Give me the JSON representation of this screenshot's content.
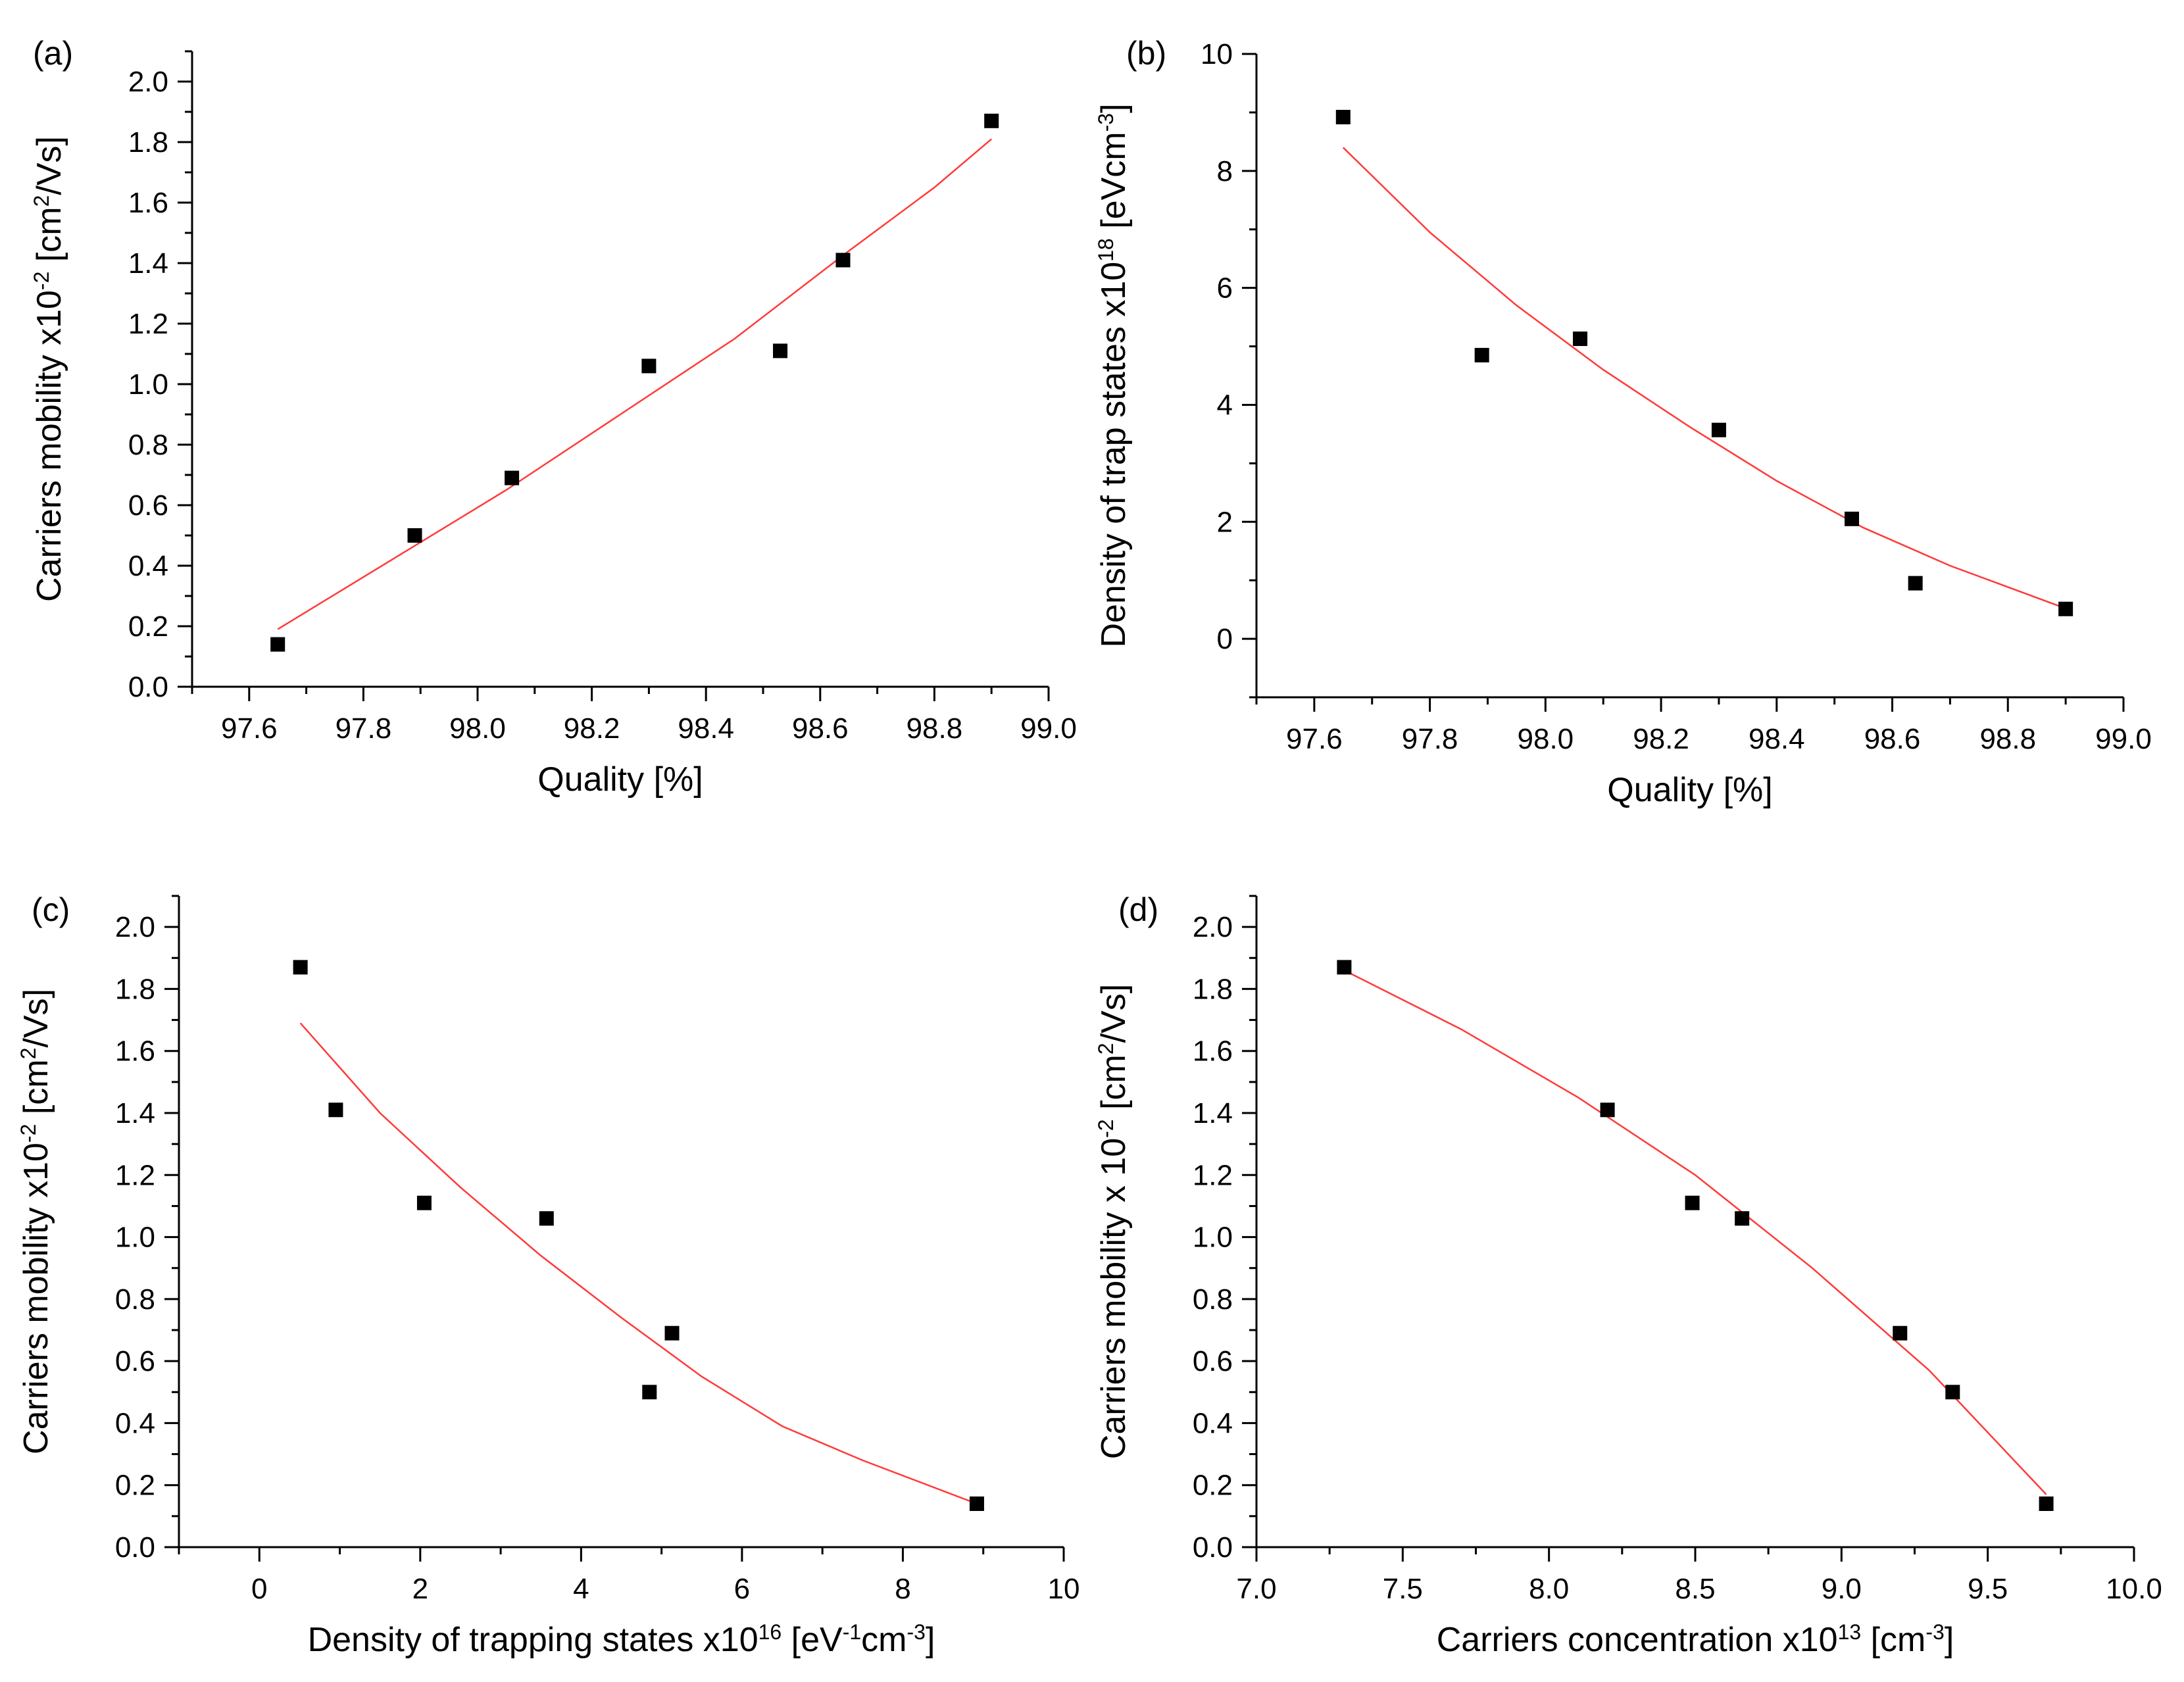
{
  "colors": {
    "marker": "#000000",
    "fit": "#ff3a3a",
    "axis": "#000000"
  },
  "chart_data": [
    {
      "type": "scatter",
      "panel_label": "(a)",
      "xlabel": "Quality [%]",
      "ylabel": "Carriers mobility x10-2 [cm2/Vs]",
      "ylabel_parts": [
        {
          "text": "Carriers mobility x10",
          "sup": false
        },
        {
          "text": "-2",
          "sup": true
        },
        {
          "text": " [cm",
          "sup": false
        },
        {
          "text": "2",
          "sup": true
        },
        {
          "text": "/Vs]",
          "sup": false
        }
      ],
      "xlim": [
        97.5,
        99.0
      ],
      "ylim": [
        0.0,
        2.1
      ],
      "xticks": [
        "97.6",
        "97.8",
        "98.0",
        "98.2",
        "98.4",
        "98.6",
        "98.8",
        "99.0"
      ],
      "yticks": [
        "0.0",
        "0.2",
        "0.4",
        "0.6",
        "0.8",
        "1.0",
        "1.2",
        "1.4",
        "1.6",
        "1.8",
        "2.0"
      ],
      "x": [
        97.65,
        97.89,
        98.06,
        98.3,
        98.53,
        98.64,
        98.9
      ],
      "y": [
        0.14,
        0.5,
        0.69,
        1.06,
        1.11,
        1.41,
        1.87
      ],
      "fit": {
        "x": [
          97.65,
          97.85,
          98.05,
          98.25,
          98.45,
          98.65,
          98.8,
          98.9
        ],
        "y": [
          0.19,
          0.42,
          0.65,
          0.9,
          1.15,
          1.44,
          1.65,
          1.81
        ]
      }
    },
    {
      "type": "scatter",
      "panel_label": "(b)",
      "xlabel": "Quality [%]",
      "ylabel": "Density of trap states x1018 [eVcm-3]",
      "ylabel_parts": [
        {
          "text": "Density of trap states x10",
          "sup": false
        },
        {
          "text": "18",
          "sup": true
        },
        {
          "text": " [eVcm",
          "sup": false
        },
        {
          "text": "-3",
          "sup": true
        },
        {
          "text": "]",
          "sup": false
        }
      ],
      "xlim": [
        97.5,
        99.0
      ],
      "ylim": [
        -1.0,
        10.0
      ],
      "xticks": [
        "97.6",
        "97.8",
        "98.0",
        "98.2",
        "98.4",
        "98.6",
        "98.8",
        "99.0"
      ],
      "yticks": [
        "0",
        "2",
        "4",
        "6",
        "8",
        "10"
      ],
      "x": [
        97.65,
        97.89,
        98.06,
        98.3,
        98.53,
        98.64,
        98.9
      ],
      "y": [
        8.92,
        4.85,
        5.13,
        3.57,
        2.05,
        0.95,
        0.51
      ],
      "fit": {
        "x": [
          97.65,
          97.8,
          97.95,
          98.1,
          98.25,
          98.4,
          98.55,
          98.7,
          98.9
        ],
        "y": [
          8.4,
          6.95,
          5.7,
          4.6,
          3.62,
          2.7,
          1.9,
          1.25,
          0.52
        ]
      }
    },
    {
      "type": "scatter",
      "panel_label": "(c)",
      "xlabel": "Density of trapping states x1016 [eV-1cm-3]",
      "xlabel_parts": [
        {
          "text": "Density of trapping states x10",
          "sup": false
        },
        {
          "text": "16",
          "sup": true
        },
        {
          "text": " [eV",
          "sup": false
        },
        {
          "text": "-1",
          "sup": true
        },
        {
          "text": "cm",
          "sup": false
        },
        {
          "text": "-3",
          "sup": true
        },
        {
          "text": "]",
          "sup": false
        }
      ],
      "ylabel": "Carriers mobility x10-2 [cm2/Vs]",
      "ylabel_parts": [
        {
          "text": "Carriers mobility x10",
          "sup": false
        },
        {
          "text": "-2",
          "sup": true
        },
        {
          "text": " [cm",
          "sup": false
        },
        {
          "text": "2",
          "sup": true
        },
        {
          "text": "/Vs]",
          "sup": false
        }
      ],
      "xlim": [
        -1.0,
        10.0
      ],
      "ylim": [
        0.0,
        2.1
      ],
      "xticks": [
        "0",
        "2",
        "4",
        "6",
        "8",
        "10"
      ],
      "yticks": [
        "0.0",
        "0.2",
        "0.4",
        "0.6",
        "0.8",
        "1.0",
        "1.2",
        "1.4",
        "1.6",
        "1.8",
        "2.0"
      ],
      "x": [
        0.51,
        0.95,
        2.05,
        3.57,
        4.85,
        5.13,
        8.92
      ],
      "y": [
        1.87,
        1.41,
        1.11,
        1.06,
        0.5,
        0.69,
        0.14
      ],
      "fit": {
        "x": [
          0.51,
          1.5,
          2.5,
          3.5,
          4.5,
          5.5,
          6.5,
          7.5,
          8.92
        ],
        "y": [
          1.69,
          1.4,
          1.16,
          0.94,
          0.74,
          0.55,
          0.39,
          0.28,
          0.14
        ]
      }
    },
    {
      "type": "scatter",
      "panel_label": "(d)",
      "xlabel": "Carriers concentration x1013 [cm-3]",
      "xlabel_parts": [
        {
          "text": "Carriers concentration x10",
          "sup": false
        },
        {
          "text": "13",
          "sup": true
        },
        {
          "text": " [cm",
          "sup": false
        },
        {
          "text": "-3",
          "sup": true
        },
        {
          "text": "]",
          "sup": false
        }
      ],
      "ylabel": "Carriers mobility x 10-2 [cm2/Vs]",
      "ylabel_parts": [
        {
          "text": "Carriers mobility x 10",
          "sup": false
        },
        {
          "text": "-2",
          "sup": true
        },
        {
          "text": " [cm",
          "sup": false
        },
        {
          "text": "2",
          "sup": true
        },
        {
          "text": "/Vs]",
          "sup": false
        }
      ],
      "xlim": [
        7.0,
        10.0
      ],
      "ylim": [
        0.0,
        2.1
      ],
      "xticks": [
        "7.0",
        "7.5",
        "8.0",
        "8.5",
        "9.0",
        "9.5",
        "10.0"
      ],
      "yticks": [
        "0.0",
        "0.2",
        "0.4",
        "0.6",
        "0.8",
        "1.0",
        "1.2",
        "1.4",
        "1.6",
        "1.8",
        "2.0"
      ],
      "x": [
        7.3,
        8.2,
        8.49,
        8.66,
        9.2,
        9.38,
        9.7
      ],
      "y": [
        1.87,
        1.41,
        1.11,
        1.06,
        0.69,
        0.5,
        0.14
      ],
      "fit": {
        "x": [
          7.3,
          7.7,
          8.1,
          8.5,
          8.9,
          9.3,
          9.7
        ],
        "y": [
          1.86,
          1.67,
          1.45,
          1.2,
          0.9,
          0.57,
          0.17
        ]
      }
    }
  ]
}
